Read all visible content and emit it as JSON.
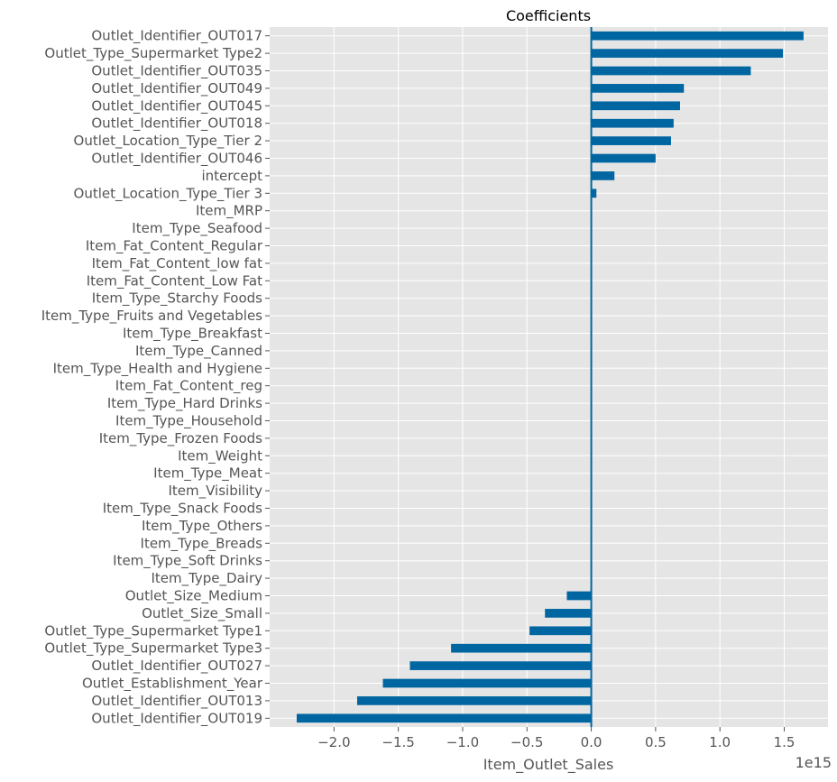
{
  "colors": {
    "background": "#e5e5e5",
    "grid": "#ffffff",
    "bar": "#0066a2",
    "zero_line": "#0066a2",
    "tick_label": "#555555"
  },
  "chart_data": {
    "type": "bar",
    "orientation": "horizontal",
    "title": "Coefficients",
    "xlabel": "Item_Outlet_Sales",
    "ylabel": "",
    "x_offset_label": "1e15",
    "xlim": [
      -2.5,
      1.84
    ],
    "x_ticks": [
      -2.0,
      -1.5,
      -1.0,
      -0.5,
      0.0,
      0.5,
      1.0,
      1.5
    ],
    "x_tick_labels": [
      "−2.0",
      "−1.5",
      "−1.0",
      "−0.5",
      "0.0",
      "0.5",
      "1.0",
      "1.5"
    ],
    "grid": true,
    "categories": [
      "Outlet_Identifier_OUT017",
      "Outlet_Type_Supermarket Type2",
      "Outlet_Identifier_OUT035",
      "Outlet_Identifier_OUT049",
      "Outlet_Identifier_OUT045",
      "Outlet_Identifier_OUT018",
      "Outlet_Location_Type_Tier 2",
      "Outlet_Identifier_OUT046",
      "intercept",
      "Outlet_Location_Type_Tier 3",
      "Item_MRP",
      "Item_Type_Seafood",
      "Item_Fat_Content_Regular",
      "Item_Fat_Content_low fat",
      "Item_Fat_Content_Low Fat",
      "Item_Type_Starchy Foods",
      "Item_Type_Fruits and Vegetables",
      "Item_Type_Breakfast",
      "Item_Type_Canned",
      "Item_Type_Health and Hygiene",
      "Item_Fat_Content_reg",
      "Item_Type_Hard Drinks",
      "Item_Type_Household",
      "Item_Type_Frozen Foods",
      "Item_Weight",
      "Item_Type_Meat",
      "Item_Visibility",
      "Item_Type_Snack Foods",
      "Item_Type_Others",
      "Item_Type_Breads",
      "Item_Type_Soft Drinks",
      "Item_Type_Dairy",
      "Outlet_Size_Medium",
      "Outlet_Size_Small",
      "Outlet_Type_Supermarket Type1",
      "Outlet_Type_Supermarket Type3",
      "Outlet_Identifier_OUT027",
      "Outlet_Establishment_Year",
      "Outlet_Identifier_OUT013",
      "Outlet_Identifier_OUT019"
    ],
    "values": [
      1.65,
      1.49,
      1.24,
      0.72,
      0.69,
      0.64,
      0.62,
      0.5,
      0.18,
      0.04,
      0,
      0,
      0,
      0,
      0,
      0,
      0,
      0,
      0,
      0,
      0,
      0,
      0,
      0,
      0,
      0,
      0,
      0,
      0,
      0,
      0,
      0,
      -0.19,
      -0.36,
      -0.48,
      -1.09,
      -1.41,
      -1.62,
      -1.82,
      -2.29
    ]
  }
}
